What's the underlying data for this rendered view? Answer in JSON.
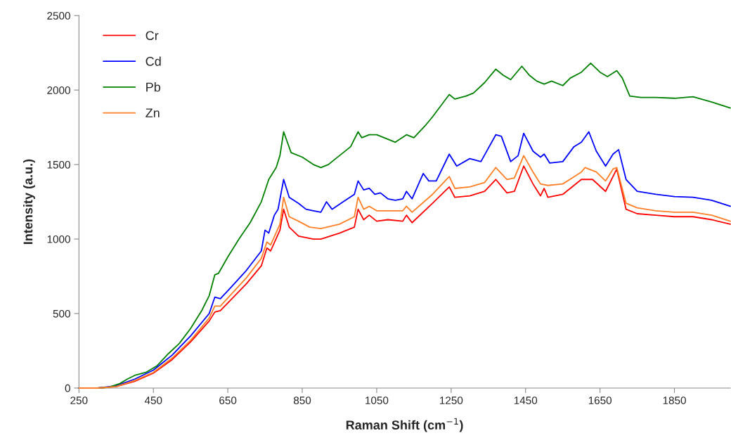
{
  "chart_data": {
    "type": "line",
    "xlabel": "Raman Shift (cm$^{−1}$)",
    "ylabel": "Intensity (a.u.)",
    "xlim": [
      250,
      2000
    ],
    "xticks": [
      250,
      450,
      650,
      850,
      1050,
      1250,
      1450,
      1650,
      1850
    ],
    "ylim": [
      0,
      2500
    ],
    "yticks": [
      0,
      500,
      1000,
      1500,
      2000,
      2500
    ],
    "grid": false,
    "legend": "top left",
    "marker": "none",
    "line_style": "solid",
    "series": [
      {
        "name": "Cr",
        "color": "#ff0000",
        "x": [
          250,
          300,
          350,
          400,
          450,
          500,
          550,
          600,
          615,
          630,
          700,
          740,
          755,
          765,
          790,
          800,
          815,
          840,
          880,
          900,
          950,
          990,
          1000,
          1015,
          1030,
          1050,
          1080,
          1120,
          1130,
          1145,
          1200,
          1245,
          1260,
          1300,
          1340,
          1370,
          1400,
          1420,
          1445,
          1470,
          1490,
          1500,
          1510,
          1550,
          1600,
          1630,
          1665,
          1695,
          1720,
          1750,
          1800,
          1850,
          1900,
          1950,
          2000
        ],
        "values": [
          0,
          0,
          10,
          45,
          100,
          190,
          310,
          450,
          510,
          520,
          700,
          820,
          940,
          920,
          1060,
          1200,
          1080,
          1020,
          1000,
          1000,
          1040,
          1080,
          1200,
          1130,
          1160,
          1120,
          1130,
          1120,
          1160,
          1110,
          1240,
          1350,
          1280,
          1290,
          1320,
          1400,
          1310,
          1320,
          1490,
          1370,
          1290,
          1340,
          1280,
          1300,
          1400,
          1400,
          1320,
          1470,
          1200,
          1170,
          1160,
          1150,
          1150,
          1130,
          1100
        ]
      },
      {
        "name": "Cd",
        "color": "#0000ff",
        "x": [
          250,
          300,
          350,
          400,
          450,
          500,
          550,
          600,
          615,
          630,
          660,
          700,
          740,
          750,
          760,
          775,
          785,
          800,
          815,
          840,
          860,
          880,
          900,
          915,
          930,
          960,
          990,
          1000,
          1015,
          1030,
          1045,
          1060,
          1080,
          1100,
          1120,
          1130,
          1145,
          1175,
          1190,
          1210,
          1245,
          1265,
          1300,
          1330,
          1370,
          1385,
          1410,
          1430,
          1445,
          1470,
          1490,
          1500,
          1515,
          1550,
          1580,
          1600,
          1620,
          1640,
          1665,
          1685,
          1700,
          1720,
          1750,
          1800,
          1850,
          1900,
          1950,
          2000
        ],
        "values": [
          0,
          0,
          15,
          60,
          120,
          220,
          350,
          500,
          610,
          600,
          680,
          790,
          920,
          1060,
          1040,
          1160,
          1200,
          1400,
          1280,
          1240,
          1200,
          1190,
          1180,
          1250,
          1200,
          1250,
          1300,
          1390,
          1330,
          1340,
          1300,
          1310,
          1270,
          1260,
          1270,
          1320,
          1270,
          1440,
          1390,
          1390,
          1570,
          1490,
          1540,
          1520,
          1700,
          1690,
          1520,
          1560,
          1710,
          1590,
          1550,
          1570,
          1510,
          1520,
          1620,
          1650,
          1720,
          1590,
          1490,
          1570,
          1600,
          1400,
          1320,
          1300,
          1285,
          1280,
          1260,
          1220
        ]
      },
      {
        "name": "Pb",
        "color": "#008000",
        "x": [
          250,
          300,
          330,
          360,
          380,
          400,
          430,
          460,
          490,
          520,
          550,
          580,
          600,
          615,
          625,
          650,
          680,
          710,
          740,
          760,
          780,
          790,
          800,
          810,
          820,
          850,
          880,
          900,
          920,
          950,
          980,
          1000,
          1010,
          1030,
          1050,
          1070,
          1100,
          1130,
          1150,
          1180,
          1200,
          1230,
          1245,
          1260,
          1290,
          1310,
          1340,
          1370,
          1390,
          1410,
          1440,
          1460,
          1480,
          1500,
          1520,
          1550,
          1570,
          1600,
          1625,
          1650,
          1670,
          1695,
          1710,
          1730,
          1760,
          1800,
          1850,
          1900,
          1950,
          2000
        ],
        "values": [
          0,
          0,
          5,
          30,
          60,
          85,
          105,
          150,
          230,
          300,
          400,
          520,
          620,
          760,
          770,
          880,
          1000,
          1110,
          1250,
          1400,
          1480,
          1560,
          1720,
          1650,
          1580,
          1550,
          1500,
          1480,
          1500,
          1560,
          1620,
          1720,
          1680,
          1700,
          1700,
          1680,
          1650,
          1700,
          1680,
          1760,
          1820,
          1920,
          1970,
          1940,
          1960,
          1980,
          2050,
          2140,
          2100,
          2070,
          2160,
          2100,
          2060,
          2040,
          2060,
          2030,
          2080,
          2120,
          2180,
          2120,
          2090,
          2130,
          2080,
          1960,
          1950,
          1950,
          1945,
          1955,
          1920,
          1880
        ]
      },
      {
        "name": "Zn",
        "color": "#ff7f27",
        "x": [
          250,
          300,
          350,
          400,
          450,
          500,
          550,
          600,
          615,
          630,
          700,
          740,
          755,
          765,
          790,
          800,
          815,
          840,
          870,
          900,
          950,
          990,
          1000,
          1015,
          1030,
          1050,
          1080,
          1120,
          1130,
          1145,
          1200,
          1245,
          1260,
          1300,
          1340,
          1370,
          1400,
          1420,
          1445,
          1470,
          1490,
          1510,
          1550,
          1600,
          1610,
          1640,
          1665,
          1685,
          1695,
          1720,
          1750,
          1800,
          1850,
          1900,
          1950,
          2000
        ],
        "values": [
          0,
          0,
          10,
          50,
          105,
          200,
          320,
          470,
          550,
          550,
          740,
          870,
          980,
          960,
          1100,
          1280,
          1150,
          1120,
          1080,
          1070,
          1100,
          1150,
          1280,
          1200,
          1220,
          1190,
          1190,
          1190,
          1220,
          1180,
          1300,
          1420,
          1340,
          1350,
          1380,
          1480,
          1400,
          1410,
          1560,
          1450,
          1370,
          1360,
          1370,
          1450,
          1480,
          1450,
          1390,
          1470,
          1480,
          1240,
          1210,
          1190,
          1180,
          1180,
          1160,
          1120
        ]
      }
    ]
  }
}
